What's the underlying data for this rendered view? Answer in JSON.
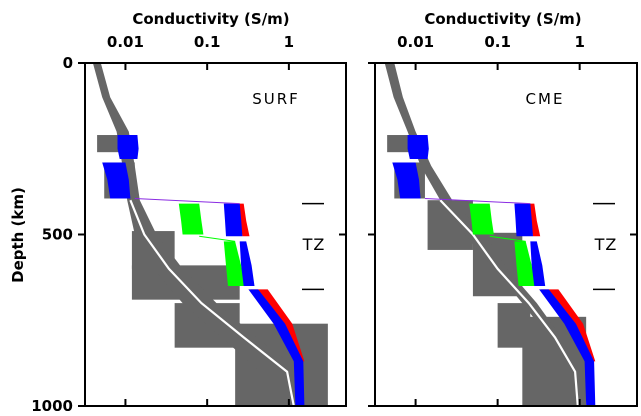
{
  "chart_data": {
    "type": "line",
    "shared": {
      "x_axis_title": "Conductivity  (S/m)",
      "x_tick_labels": [
        "0.01",
        "0.1",
        "1"
      ],
      "x_ticks": [
        0.01,
        0.1,
        1
      ],
      "x_scale": "log",
      "xlim": [
        0.0032,
        5
      ],
      "y_axis_title": "Depth  (km)",
      "y_tick_labels": [
        "0",
        "500",
        "1000"
      ],
      "y_ticks": [
        0,
        500,
        1000
      ],
      "ylim": [
        0,
        1000
      ],
      "y_inverted": true,
      "tz_label": "TZ",
      "tz_marker_depths": [
        410,
        660
      ],
      "grid": false,
      "colors": {
        "gray": "#666666",
        "white": "#ffffff",
        "blue": "#0000ff",
        "green": "#00ff00",
        "red": "#ff0000",
        "purple": "#8a2be2"
      }
    },
    "panels": [
      {
        "label": "SURF",
        "gray_boxes": [
          {
            "x": [
              0.0045,
              0.013
            ],
            "y": [
              210,
              260
            ]
          },
          {
            "x": [
              0.0055,
              0.013
            ],
            "y": [
              290,
              395
            ]
          },
          {
            "x": [
              0.012,
              0.04
            ],
            "y": [
              490,
              600
            ]
          },
          {
            "x": [
              0.012,
              0.25
            ],
            "y": [
              590,
              690
            ]
          },
          {
            "x": [
              0.04,
              0.25
            ],
            "y": [
              700,
              830
            ]
          },
          {
            "x": [
              0.22,
              3
            ],
            "y": [
              760,
              1000
            ]
          }
        ],
        "gray_band": {
          "depth": [
            0,
            100,
            200,
            300,
            400,
            500,
            600,
            700,
            800,
            900,
            1000
          ],
          "low": [
            0.004,
            0.0052,
            0.0078,
            0.0092,
            0.0105,
            0.013,
            0.022,
            0.05,
            0.15,
            0.45,
            0.55
          ],
          "high": [
            0.005,
            0.0065,
            0.011,
            0.013,
            0.015,
            0.024,
            0.05,
            0.13,
            0.4,
            1.4,
            1.4
          ]
        },
        "white_line": {
          "depth": [
            400,
            500,
            600,
            700,
            800,
            900,
            1000
          ],
          "value": [
            0.0115,
            0.017,
            0.034,
            0.085,
            0.28,
            0.95,
            1.15
          ]
        },
        "blue_blocks": [
          {
            "depth": [
              210,
              250,
              280
            ],
            "left": [
              0.008,
              0.008,
              0.0085
            ],
            "right": [
              0.014,
              0.0145,
              0.014
            ]
          },
          {
            "depth": [
              290,
              340,
              395
            ],
            "left": [
              0.0052,
              0.006,
              0.0065
            ],
            "right": [
              0.01,
              0.011,
              0.0115
            ]
          },
          {
            "depth": [
              410,
              455,
              505
            ],
            "left": [
              0.16,
              0.165,
              0.17
            ],
            "right": [
              0.25,
              0.26,
              0.27
            ]
          },
          {
            "depth": [
              520,
              590,
              650
            ],
            "left": [
              0.25,
              0.26,
              0.27
            ],
            "right": [
              0.3,
              0.35,
              0.38
            ]
          },
          {
            "depth": [
              660,
              760,
              870,
              1000
            ],
            "left": [
              0.32,
              0.65,
              1.15,
              1.2
            ],
            "right": [
              0.42,
              0.9,
              1.5,
              1.55
            ]
          }
        ],
        "green_blocks": [
          {
            "depth": [
              410,
              460,
              500
            ],
            "left": [
              0.045,
              0.048,
              0.05
            ],
            "right": [
              0.08,
              0.085,
              0.09
            ]
          },
          {
            "depth": [
              520,
              590,
              650
            ],
            "left": [
              0.16,
              0.17,
              0.18
            ],
            "right": [
              0.22,
              0.26,
              0.28
            ]
          }
        ],
        "red_blocks": [
          {
            "depth": [
              410,
              460,
              505
            ],
            "left": [
              0.23,
              0.25,
              0.27
            ],
            "right": [
              0.28,
              0.3,
              0.33
            ]
          },
          {
            "depth": [
              660,
              760,
              870
            ],
            "left": [
              0.34,
              0.7,
              1.2
            ],
            "right": [
              0.55,
              1.1,
              1.55
            ]
          }
        ],
        "connectors": [
          {
            "color": "purple",
            "from": [
              0.013,
              395
            ],
            "to": [
              0.25,
              410
            ]
          },
          {
            "color": "green",
            "from": [
              0.08,
              505
            ],
            "to": [
              0.22,
              520
            ]
          }
        ]
      },
      {
        "label": "CME",
        "gray_boxes": [
          {
            "x": [
              0.0045,
              0.013
            ],
            "y": [
              210,
              260
            ]
          },
          {
            "x": [
              0.0055,
              0.013
            ],
            "y": [
              290,
              395
            ]
          },
          {
            "x": [
              0.014,
              0.05
            ],
            "y": [
              400,
              545
            ]
          },
          {
            "x": [
              0.05,
              0.2
            ],
            "y": [
              495,
              680
            ]
          },
          {
            "x": [
              0.1,
              0.25
            ],
            "y": [
              700,
              830
            ]
          },
          {
            "x": [
              0.2,
              1.2
            ],
            "y": [
              740,
              1000
            ]
          }
        ],
        "gray_band": {
          "depth": [
            0,
            100,
            200,
            300,
            400,
            500,
            600,
            700,
            800,
            900,
            1000
          ],
          "low": [
            0.0042,
            0.0054,
            0.008,
            0.0115,
            0.02,
            0.04,
            0.09,
            0.2,
            0.42,
            0.78,
            0.9
          ],
          "high": [
            0.0055,
            0.007,
            0.01,
            0.0155,
            0.028,
            0.07,
            0.13,
            0.3,
            0.6,
            1.0,
            1.0
          ]
        },
        "white_line": {
          "depth": [
            400,
            500,
            600,
            700,
            800,
            900,
            1000
          ],
          "value": [
            0.02,
            0.05,
            0.1,
            0.24,
            0.5,
            0.88,
            0.95
          ]
        },
        "blue_blocks": [
          {
            "depth": [
              210,
              250,
              280
            ],
            "left": [
              0.008,
              0.008,
              0.0085
            ],
            "right": [
              0.014,
              0.0145,
              0.014
            ]
          },
          {
            "depth": [
              290,
              340,
              395
            ],
            "left": [
              0.0052,
              0.006,
              0.0065
            ],
            "right": [
              0.01,
              0.011,
              0.0115
            ]
          },
          {
            "depth": [
              410,
              455,
              505
            ],
            "left": [
              0.16,
              0.165,
              0.17
            ],
            "right": [
              0.25,
              0.26,
              0.27
            ]
          },
          {
            "depth": [
              520,
              590,
              650
            ],
            "left": [
              0.25,
              0.26,
              0.27
            ],
            "right": [
              0.3,
              0.35,
              0.38
            ]
          },
          {
            "depth": [
              660,
              760,
              870,
              1000
            ],
            "left": [
              0.32,
              0.65,
              1.15,
              1.2
            ],
            "right": [
              0.42,
              0.9,
              1.5,
              1.55
            ]
          }
        ],
        "green_blocks": [
          {
            "depth": [
              410,
              460,
              500
            ],
            "left": [
              0.045,
              0.048,
              0.05
            ],
            "right": [
              0.08,
              0.085,
              0.09
            ]
          },
          {
            "depth": [
              520,
              590,
              650
            ],
            "left": [
              0.16,
              0.17,
              0.18
            ],
            "right": [
              0.22,
              0.26,
              0.28
            ]
          }
        ],
        "red_blocks": [
          {
            "depth": [
              410,
              460,
              505
            ],
            "left": [
              0.23,
              0.25,
              0.27
            ],
            "right": [
              0.28,
              0.3,
              0.33
            ]
          },
          {
            "depth": [
              660,
              760,
              870
            ],
            "left": [
              0.34,
              0.7,
              1.2
            ],
            "right": [
              0.55,
              1.1,
              1.55
            ]
          }
        ],
        "connectors": [
          {
            "color": "purple",
            "from": [
              0.013,
              395
            ],
            "to": [
              0.25,
              410
            ]
          },
          {
            "color": "green",
            "from": [
              0.08,
              505
            ],
            "to": [
              0.22,
              520
            ]
          }
        ]
      }
    ]
  }
}
